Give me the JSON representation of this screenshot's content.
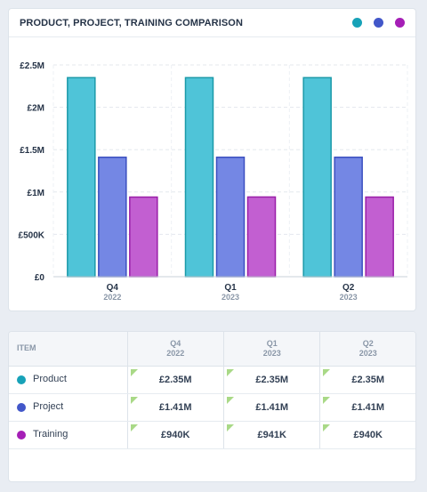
{
  "header": {
    "title": "PRODUCT, PROJECT, TRAINING COMPARISON"
  },
  "colors": {
    "Product": "#4fc4d8",
    "Product_dot": "#17a2b8",
    "Project": "#7487e4",
    "Project_dot": "#4257c9",
    "Training": "#c25fd1",
    "Training_dot": "#a51fb6",
    "bar_stroke_product": "#1b9aa9",
    "bar_stroke_project": "#3b4fc0",
    "bar_stroke_training": "#9a1ea8"
  },
  "chart_data": {
    "type": "bar",
    "categories": [
      "Q4",
      "Q1",
      "Q2"
    ],
    "category_years": [
      "2022",
      "2023",
      "2023"
    ],
    "series": [
      {
        "name": "Product",
        "values": [
          2350000,
          2350000,
          2350000
        ]
      },
      {
        "name": "Project",
        "values": [
          1410000,
          1410000,
          1410000
        ]
      },
      {
        "name": "Training",
        "values": [
          940000,
          941000,
          940000
        ]
      }
    ],
    "ylim": [
      0,
      2500000
    ],
    "yticks": [
      0,
      500000,
      1000000,
      1500000,
      2000000,
      2500000
    ],
    "ytick_labels": [
      "£0",
      "£500K",
      "£1M",
      "£1.5M",
      "£2M",
      "£2.5M"
    ],
    "grid": true,
    "legend": "top-right"
  },
  "table": {
    "item_header": "ITEM",
    "columns": [
      {
        "quarter": "Q4",
        "year": "2022"
      },
      {
        "quarter": "Q1",
        "year": "2023"
      },
      {
        "quarter": "Q2",
        "year": "2023"
      }
    ],
    "rows": [
      {
        "name": "Product",
        "values": [
          "£2.35M",
          "£2.35M",
          "£2.35M"
        ]
      },
      {
        "name": "Project",
        "values": [
          "£1.41M",
          "£1.41M",
          "£1.41M"
        ]
      },
      {
        "name": "Training",
        "values": [
          "£940K",
          "£941K",
          "£940K"
        ]
      }
    ]
  }
}
